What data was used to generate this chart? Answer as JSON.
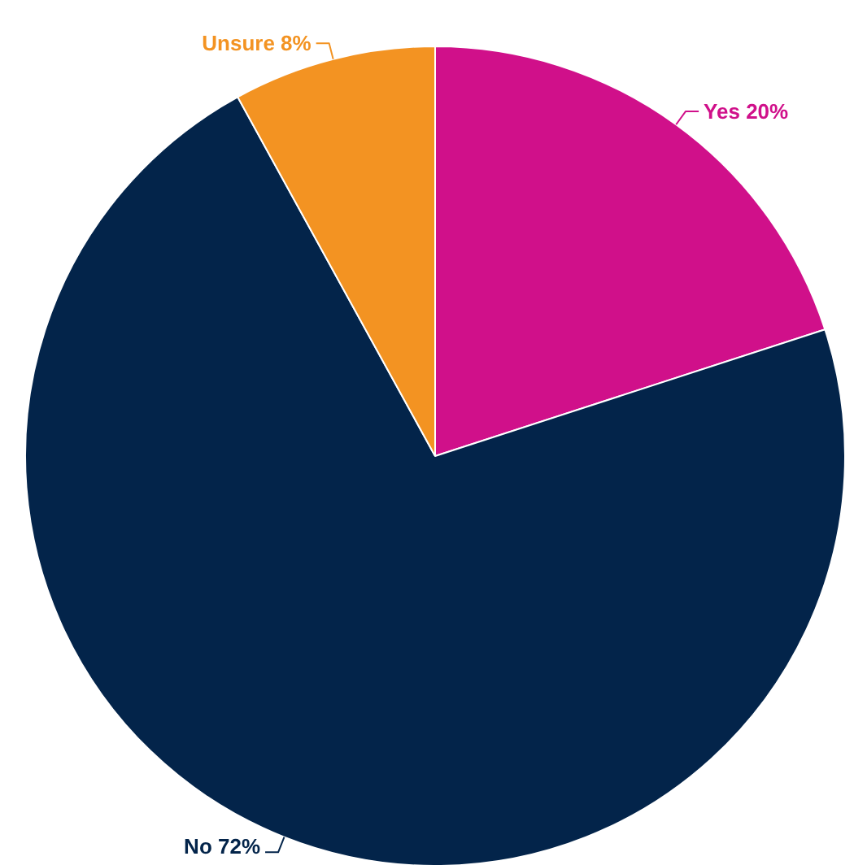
{
  "chart_data": {
    "type": "pie",
    "categories": [
      "Yes",
      "No",
      "Unsure"
    ],
    "values": [
      20,
      72,
      8
    ],
    "colors": [
      "#d0108a",
      "#03244a",
      "#f39322"
    ],
    "value_labels": [
      "20%",
      "72%",
      "8%"
    ]
  }
}
